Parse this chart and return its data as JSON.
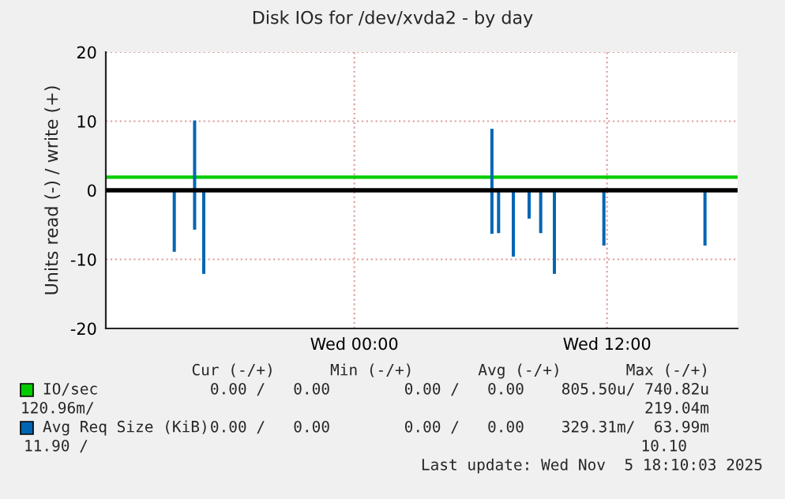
{
  "chart_data": {
    "type": "bar",
    "title": "Disk IOs for /dev/xvda2 - by day",
    "ylabel": "Units read (-) / write (+)",
    "xlim": [
      "2025-11-04T12:12",
      "2025-11-05T18:12"
    ],
    "xticks": [
      {
        "value": "2025-11-05T00:00",
        "label": "Wed 00:00"
      },
      {
        "value": "2025-11-05T12:00",
        "label": "Wed 12:00"
      }
    ],
    "ylim": [
      -20,
      20
    ],
    "yticks": [
      -20,
      -10,
      0,
      10,
      20
    ],
    "grid": true,
    "legend": "bottom",
    "ref_lines": [
      {
        "axis": "y",
        "value": 0,
        "color": "#000000"
      }
    ],
    "series": [
      {
        "name": "IO/sec",
        "type": "line",
        "color": "#00cc00",
        "x": [
          "2025-11-04T12:12",
          "2025-11-05T18:12"
        ],
        "values": [
          1.9,
          1.9
        ]
      },
      {
        "name": "Avg Req Size (KiB)",
        "color": "#0066b3",
        "x": [
          "2025-11-04T15:27",
          "2025-11-04T16:25",
          "2025-11-04T16:51",
          "2025-11-05T06:32",
          "2025-11-05T06:51",
          "2025-11-05T07:33",
          "2025-11-05T08:18",
          "2025-11-05T08:51",
          "2025-11-05T09:30",
          "2025-11-05T11:51",
          "2025-11-05T16:39"
        ],
        "values": [
          -8.9,
          -5.7,
          -12.1,
          -6.3,
          -6.2,
          -9.6,
          -4.1,
          -6.2,
          -12.1,
          -8.0,
          -8.0
        ]
      },
      {
        "color": "#0066b3",
        "x": [
          "2025-11-04T16:25",
          "2025-11-05T06:32"
        ],
        "values": [
          10.1,
          8.9
        ]
      }
    ],
    "annotations": [
      "Cur (-/+)      Min (-/+)       Avg (-/+)       Max (-/+)",
      "0.00 /   0.00        0.00 /   0.00    805.50u/ 740.82u",
      "120.96m/",
      "219.04m",
      "0.00 /   0.00        0.00 /   0.00    329.31m/  63.99m",
      "11.90 /",
      "10.10",
      "Last update: Wed Nov  5 18:10:03 2025"
    ]
  }
}
